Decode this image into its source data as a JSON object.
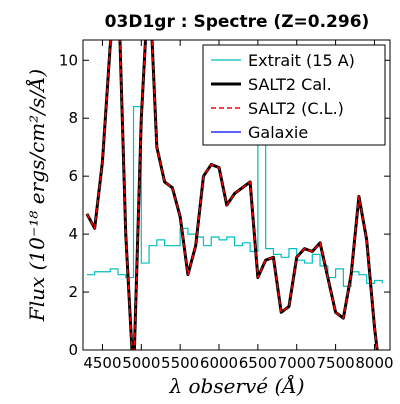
{
  "chart_data": {
    "type": "line",
    "title": "03D1gr : Spectre (Z=0.296)",
    "x_label": "λ observé (Å)",
    "y_label": "Flux (10⁻¹⁸ ergs/cm²/s/Å)",
    "x": [
      4300,
      4400,
      4500,
      4600,
      4700,
      4800,
      4900,
      5000,
      5100,
      5200,
      5300,
      5400,
      5500,
      5600,
      5700,
      5800,
      5900,
      6000,
      6100,
      6200,
      6300,
      6400,
      6500,
      6600,
      6700,
      6800,
      6900,
      7000,
      7100,
      7200,
      7300,
      7400,
      7500,
      7600,
      7700,
      7800,
      7900,
      8000,
      8100
    ],
    "series": [
      {
        "name": "Extrait (15 A)",
        "color": "#00bfbf",
        "step": true,
        "width": 1.2,
        "values": [
          2.6,
          2.7,
          2.7,
          2.8,
          2.6,
          2.5,
          8.4,
          3.0,
          3.6,
          3.8,
          3.6,
          3.6,
          4.2,
          4.0,
          3.9,
          3.6,
          3.9,
          3.8,
          3.9,
          3.6,
          3.7,
          3.4,
          9.7,
          3.5,
          3.3,
          3.2,
          3.5,
          3.1,
          3.0,
          3.3,
          2.9,
          2.5,
          2.8,
          2.2,
          2.7,
          2.6,
          2.3,
          2.4,
          2.3
        ]
      },
      {
        "name": "SALT2 Cal.",
        "color": "#000000",
        "width": 3,
        "values": [
          4.7,
          4.2,
          6.5,
          10.5,
          13,
          4,
          -1,
          8,
          13,
          7,
          5.8,
          5.6,
          4.6,
          2.6,
          3.6,
          6.0,
          6.4,
          6.3,
          5.0,
          5.4,
          5.6,
          5.8,
          2.5,
          3.1,
          3.2,
          1.3,
          1.5,
          3.2,
          3.5,
          3.4,
          3.7,
          2.5,
          1.3,
          1.1,
          2.6,
          5.3,
          3.8,
          0.8,
          -1.5
        ]
      },
      {
        "name": "SALT2 (C.L.)",
        "color": "#ff0000",
        "dash": true,
        "width": 1.5,
        "values": [
          4.7,
          4.2,
          6.5,
          10.5,
          13,
          4,
          -1,
          8,
          13,
          7,
          5.8,
          5.6,
          4.6,
          2.6,
          3.6,
          6.0,
          6.4,
          6.3,
          5.0,
          5.4,
          5.6,
          5.8,
          2.5,
          3.1,
          3.2,
          1.3,
          1.5,
          3.2,
          3.5,
          3.4,
          3.7,
          2.5,
          1.3,
          1.1,
          2.6,
          5.3,
          3.8,
          0.8,
          -1.5
        ]
      },
      {
        "name": "Galaxie",
        "color": "#0000ff",
        "width": 1.2,
        "values": [
          null,
          null,
          null,
          null,
          null,
          null,
          null,
          null,
          null,
          null,
          null,
          null,
          null,
          null,
          null,
          null,
          null,
          null,
          null,
          null,
          null,
          null,
          null,
          null,
          null,
          null,
          null,
          null,
          null,
          null,
          null,
          null,
          null,
          null,
          null,
          null,
          null,
          null,
          null
        ]
      }
    ],
    "xlim": [
      4250,
      8200
    ],
    "xticks": [
      4500,
      5000,
      5500,
      6000,
      6500,
      7000,
      7500,
      8000
    ],
    "ylim": [
      0,
      10.7
    ],
    "yticks": [
      0,
      2,
      4,
      6,
      8,
      10
    ],
    "legend": "upper right"
  }
}
